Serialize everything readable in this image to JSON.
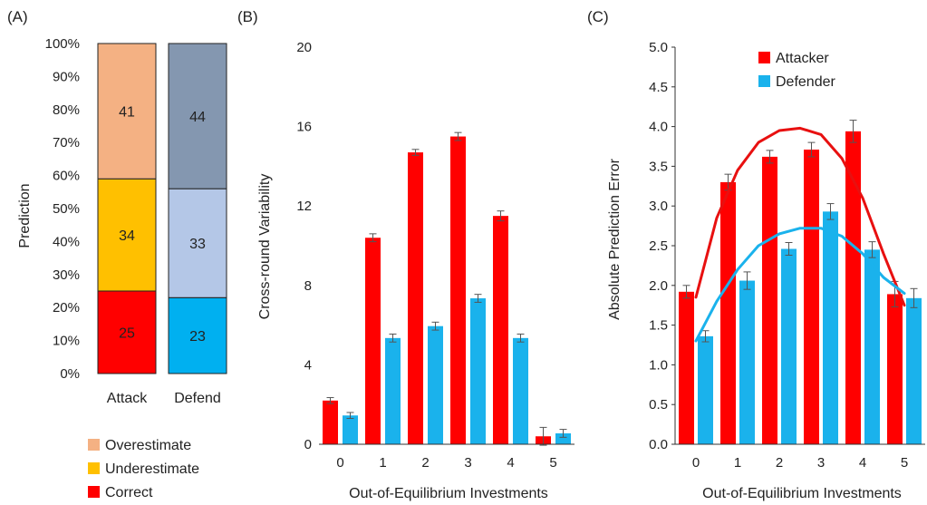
{
  "chart_data": [
    {
      "panel": "(A)",
      "type": "bar",
      "stacked": true,
      "ylabel": "Prediction",
      "ylim": [
        0,
        100
      ],
      "yticks": [
        "0%",
        "10%",
        "20%",
        "30%",
        "40%",
        "50%",
        "60%",
        "70%",
        "80%",
        "90%",
        "100%"
      ],
      "categories": [
        "Attack",
        "Defend"
      ],
      "series": [
        {
          "name": "Correct",
          "values": [
            25,
            23
          ]
        },
        {
          "name": "Underestimate",
          "values": [
            34,
            33
          ]
        },
        {
          "name": "Overestimate",
          "values": [
            41,
            44
          ]
        }
      ],
      "colors": {
        "Attack": [
          "#ff0000",
          "#ffc000",
          "#f4b183"
        ],
        "Defend": [
          "#00b0f0",
          "#b4c7e7",
          "#8497b0"
        ]
      },
      "legend": {
        "placement": "bottom",
        "items": [
          {
            "label": "Overestimate",
            "color": "#f4b183"
          },
          {
            "label": "Underestimate",
            "color": "#ffc000"
          },
          {
            "label": "Correct",
            "color": "#ff0000"
          }
        ]
      }
    },
    {
      "panel": "(B)",
      "type": "bar",
      "xlabel": "Out-of-Equilibrium Investments",
      "ylabel": "Cross-round Variability",
      "ylim": [
        0,
        20
      ],
      "yticks": [
        0,
        4,
        8,
        12,
        16,
        20
      ],
      "categories": [
        "0",
        "1",
        "2",
        "3",
        "4",
        "5"
      ],
      "series": [
        {
          "color": "#ff0000",
          "values": [
            2.2,
            10.4,
            14.7,
            15.5,
            11.5,
            0.4
          ],
          "errors": [
            0.15,
            0.2,
            0.15,
            0.2,
            0.25,
            0.45
          ]
        },
        {
          "color": "#1ab2ec",
          "values": [
            1.45,
            5.35,
            5.95,
            7.35,
            5.35,
            0.55
          ],
          "errors": [
            0.15,
            0.2,
            0.2,
            0.2,
            0.2,
            0.2
          ]
        }
      ]
    },
    {
      "panel": "(C)",
      "type": "bar",
      "xlabel": "Out-of-Equilibrium Investments",
      "ylabel": "Absolute Prediction Error",
      "ylim": [
        0,
        5
      ],
      "yticks": [
        "0.0",
        "0.5",
        "1.0",
        "1.5",
        "2.0",
        "2.5",
        "3.0",
        "3.5",
        "4.0",
        "4.5",
        "5.0"
      ],
      "categories": [
        "0",
        "1",
        "2",
        "3",
        "4",
        "5"
      ],
      "legend": {
        "placement": "top"
      },
      "series": [
        {
          "name": "Attacker",
          "color": "#ff0000",
          "values": [
            1.92,
            3.3,
            3.62,
            3.71,
            3.94,
            1.89
          ],
          "errors": [
            0.08,
            0.1,
            0.08,
            0.09,
            0.14,
            0.16
          ]
        },
        {
          "name": "Defender",
          "color": "#1ab2ec",
          "values": [
            1.36,
            2.06,
            2.46,
            2.93,
            2.45,
            1.84
          ],
          "errors": [
            0.07,
            0.11,
            0.08,
            0.1,
            0.1,
            0.12
          ]
        }
      ],
      "trendlines": [
        {
          "series": "Attacker",
          "color": "#e81010",
          "points": [
            [
              0,
              1.85
            ],
            [
              0.5,
              2.85
            ],
            [
              1,
              3.45
            ],
            [
              1.5,
              3.8
            ],
            [
              2,
              3.95
            ],
            [
              2.5,
              3.98
            ],
            [
              3,
              3.9
            ],
            [
              3.5,
              3.6
            ],
            [
              4,
              3.1
            ],
            [
              4.5,
              2.4
            ],
            [
              5,
              1.75
            ]
          ]
        },
        {
          "series": "Defender",
          "color": "#1ab2ec",
          "points": [
            [
              0,
              1.3
            ],
            [
              0.5,
              1.8
            ],
            [
              1,
              2.2
            ],
            [
              1.5,
              2.5
            ],
            [
              2,
              2.65
            ],
            [
              2.5,
              2.72
            ],
            [
              3,
              2.72
            ],
            [
              3.5,
              2.62
            ],
            [
              4,
              2.4
            ],
            [
              4.5,
              2.1
            ],
            [
              5,
              1.9
            ]
          ]
        }
      ]
    }
  ]
}
